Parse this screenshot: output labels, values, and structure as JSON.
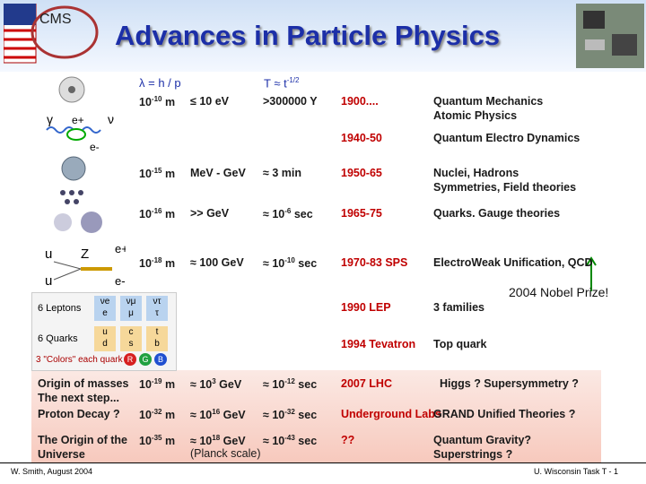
{
  "header": {
    "title": "Advances in Particle Physics"
  },
  "column_headers": {
    "length": "λ = h / p",
    "time": {
      "base": "T ≈  t",
      "sup": "-1/2"
    }
  },
  "rows": [
    {
      "length": {
        "base": "10",
        "sup": "-10",
        "post": " m"
      },
      "energy": {
        "base": "≤ 10 eV"
      },
      "time": {
        "base": ">300000 Y"
      },
      "year": "1900....",
      "topic": [
        "Quantum Mechanics",
        "Atomic Physics"
      ]
    },
    {
      "year": "1940-50",
      "topic": [
        "Quantum Electro Dynamics"
      ]
    },
    {
      "length": {
        "base": "10",
        "sup": "-15",
        "post": " m"
      },
      "energy": {
        "base": "MeV - GeV"
      },
      "time": {
        "base": "≈ 3 min"
      },
      "year": "1950-65",
      "topic": [
        "Nuclei, Hadrons",
        "Symmetries, Field theories"
      ]
    },
    {
      "length": {
        "base": "10",
        "sup": "-16",
        "post": " m"
      },
      "energy": {
        "base": ">> GeV"
      },
      "time": {
        "pre": "≈ ",
        "base": "10",
        "sup": "-6",
        "post": " sec"
      },
      "year": "1965-75",
      "topic": [
        "Quarks. Gauge theories"
      ]
    },
    {
      "length": {
        "base": "10",
        "sup": "-18",
        "post": " m"
      },
      "energy": {
        "base": "≈ 100 GeV"
      },
      "time": {
        "pre": "≈ ",
        "base": "10",
        "sup": "-10",
        "post": " sec"
      },
      "year": "1970-83 SPS",
      "topic": [
        "ElectroWeak Unification, QCD"
      ]
    },
    {
      "year": "1990 LEP",
      "topic": [
        "3 families"
      ]
    },
    {
      "year": "1994 Tevatron",
      "topic": [
        "Top quark"
      ]
    },
    {
      "label": [
        "Origin of masses",
        "The next step..."
      ],
      "length": {
        "base": "10",
        "sup": "-19",
        "post": " m"
      },
      "energy": {
        "pre": "≈ ",
        "base": "10",
        "sup": "3",
        "post": " GeV"
      },
      "time": {
        "pre": "≈ ",
        "base": "10",
        "sup": "-12",
        "post": " sec"
      },
      "year": "2007 LHC",
      "topic": [
        "Higgs ? Supersymmetry ?"
      ]
    },
    {
      "label": [
        "Proton Decay ?"
      ],
      "length": {
        "base": "10",
        "sup": "-32",
        "post": " m"
      },
      "energy": {
        "pre": "≈ ",
        "base": "10",
        "sup": "16",
        "post": " GeV"
      },
      "time": {
        "pre": "≈ ",
        "base": "10",
        "sup": "-32",
        "post": " sec"
      },
      "year": "Underground Labs",
      "topic": [
        "GRAND Unified Theories ?"
      ]
    },
    {
      "label": [
        "The Origin of the",
        "Universe"
      ],
      "length": {
        "base": "10",
        "sup": "-35",
        "post": " m"
      },
      "energy": {
        "pre": "≈ ",
        "base": "10",
        "sup": "18",
        "post": " GeV"
      },
      "energy_note": "(Planck scale)",
      "time": {
        "pre": "≈ ",
        "base": "10",
        "sup": "-43",
        "post": " sec"
      },
      "year": "??",
      "topic": [
        "Quantum Gravity?",
        "Superstrings ?"
      ]
    }
  ],
  "annotation": "2004 Nobel Prize!",
  "diagram_labels": [
    "γ",
    "e+",
    "ν",
    "e-",
    "u",
    "Z",
    "e+",
    "u",
    "e-"
  ],
  "particle_table": {
    "leptons_label": "6 Leptons",
    "quarks_label": "6 Quarks",
    "colors_label": "3 \"Colors\" each quark",
    "leptons": [
      [
        "νe",
        "e"
      ],
      [
        "νμ",
        "μ"
      ],
      [
        "ντ",
        "τ"
      ]
    ],
    "quarks": [
      [
        "u",
        "d"
      ],
      [
        "c",
        "s"
      ],
      [
        "t",
        "b"
      ]
    ],
    "colors": [
      "R",
      "G",
      "B"
    ]
  },
  "footer": {
    "left": "W. Smith, August 2004",
    "right": "U. Wisconsin Task T - 1"
  }
}
